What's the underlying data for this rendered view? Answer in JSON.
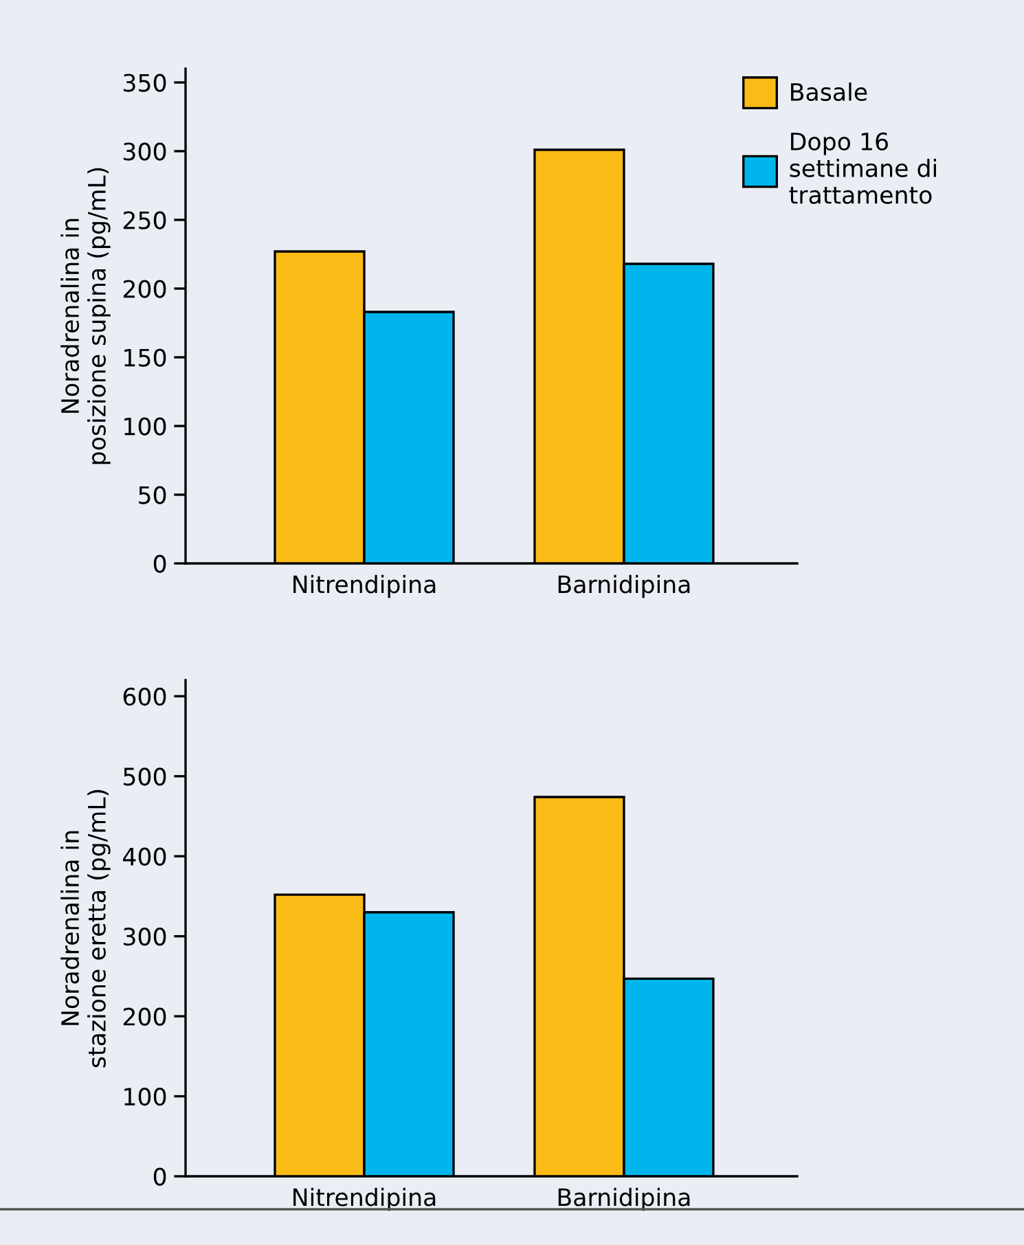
{
  "chart_data": [
    {
      "type": "bar",
      "categories": [
        "Nitrendipina",
        "Barnidipina"
      ],
      "ylabel": "Noradrenalina in\nposizione supina (pg/mL)",
      "ylim": [
        0,
        360
      ],
      "yticks": [
        0,
        50,
        100,
        150,
        200,
        250,
        300,
        350
      ],
      "grid": false,
      "legend": "top right",
      "series": [
        {
          "name": "Basale",
          "color": "#fbbb16",
          "values": [
            227,
            301
          ]
        },
        {
          "name": "Dopo 16\nsettimane di\ntrattamento",
          "color": "#00b5ec",
          "values": [
            183,
            218
          ]
        }
      ]
    },
    {
      "type": "bar",
      "categories": [
        "Nitrendipina",
        "Barnidipina"
      ],
      "ylabel": "Noradrenalina in\nstazione eretta (pg/mL)",
      "ylim": [
        0,
        620
      ],
      "yticks": [
        0,
        100,
        200,
        300,
        400,
        500,
        600
      ],
      "grid": false,
      "series": [
        {
          "color": "#fbbb16",
          "values": [
            352,
            474
          ]
        },
        {
          "color": "#00b5ec",
          "values": [
            330,
            247
          ]
        }
      ]
    }
  ]
}
